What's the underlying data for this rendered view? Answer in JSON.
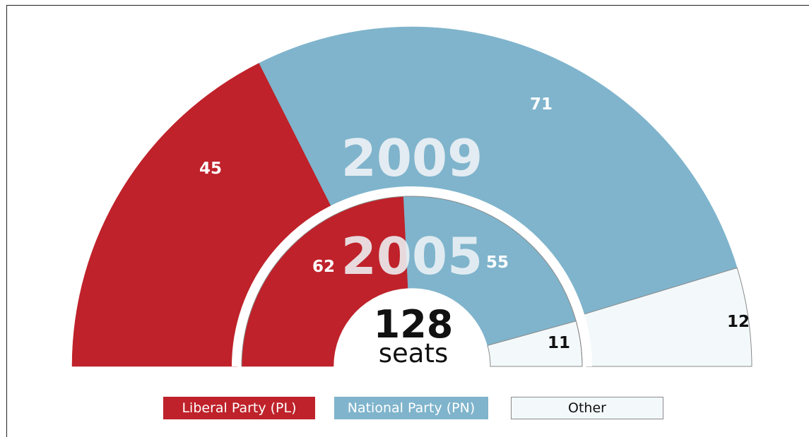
{
  "chart_data": {
    "type": "pie",
    "total_seats": "128",
    "total_unit": "seats",
    "rings": [
      {
        "year": "2009",
        "values": [
          {
            "party": "Liberal Party (PL)",
            "seats": 45,
            "label": "45"
          },
          {
            "party": "National Party (PN)",
            "seats": 71,
            "label": "71"
          },
          {
            "party": "Other",
            "seats": 12,
            "label": "12"
          }
        ]
      },
      {
        "year": "2005",
        "values": [
          {
            "party": "Liberal Party (PL)",
            "seats": 62,
            "label": "62"
          },
          {
            "party": "National Party (PN)",
            "seats": 55,
            "label": "55"
          },
          {
            "party": "Other",
            "seats": 11,
            "label": "11"
          }
        ]
      }
    ],
    "legend": [
      {
        "label": "Liberal Party (PL)",
        "color": "#bf222a"
      },
      {
        "label": "National Party (PN)",
        "color": "#7fb4cc"
      },
      {
        "label": "Other",
        "color": "#f3f9fb"
      }
    ],
    "legend_position": "bottom"
  }
}
